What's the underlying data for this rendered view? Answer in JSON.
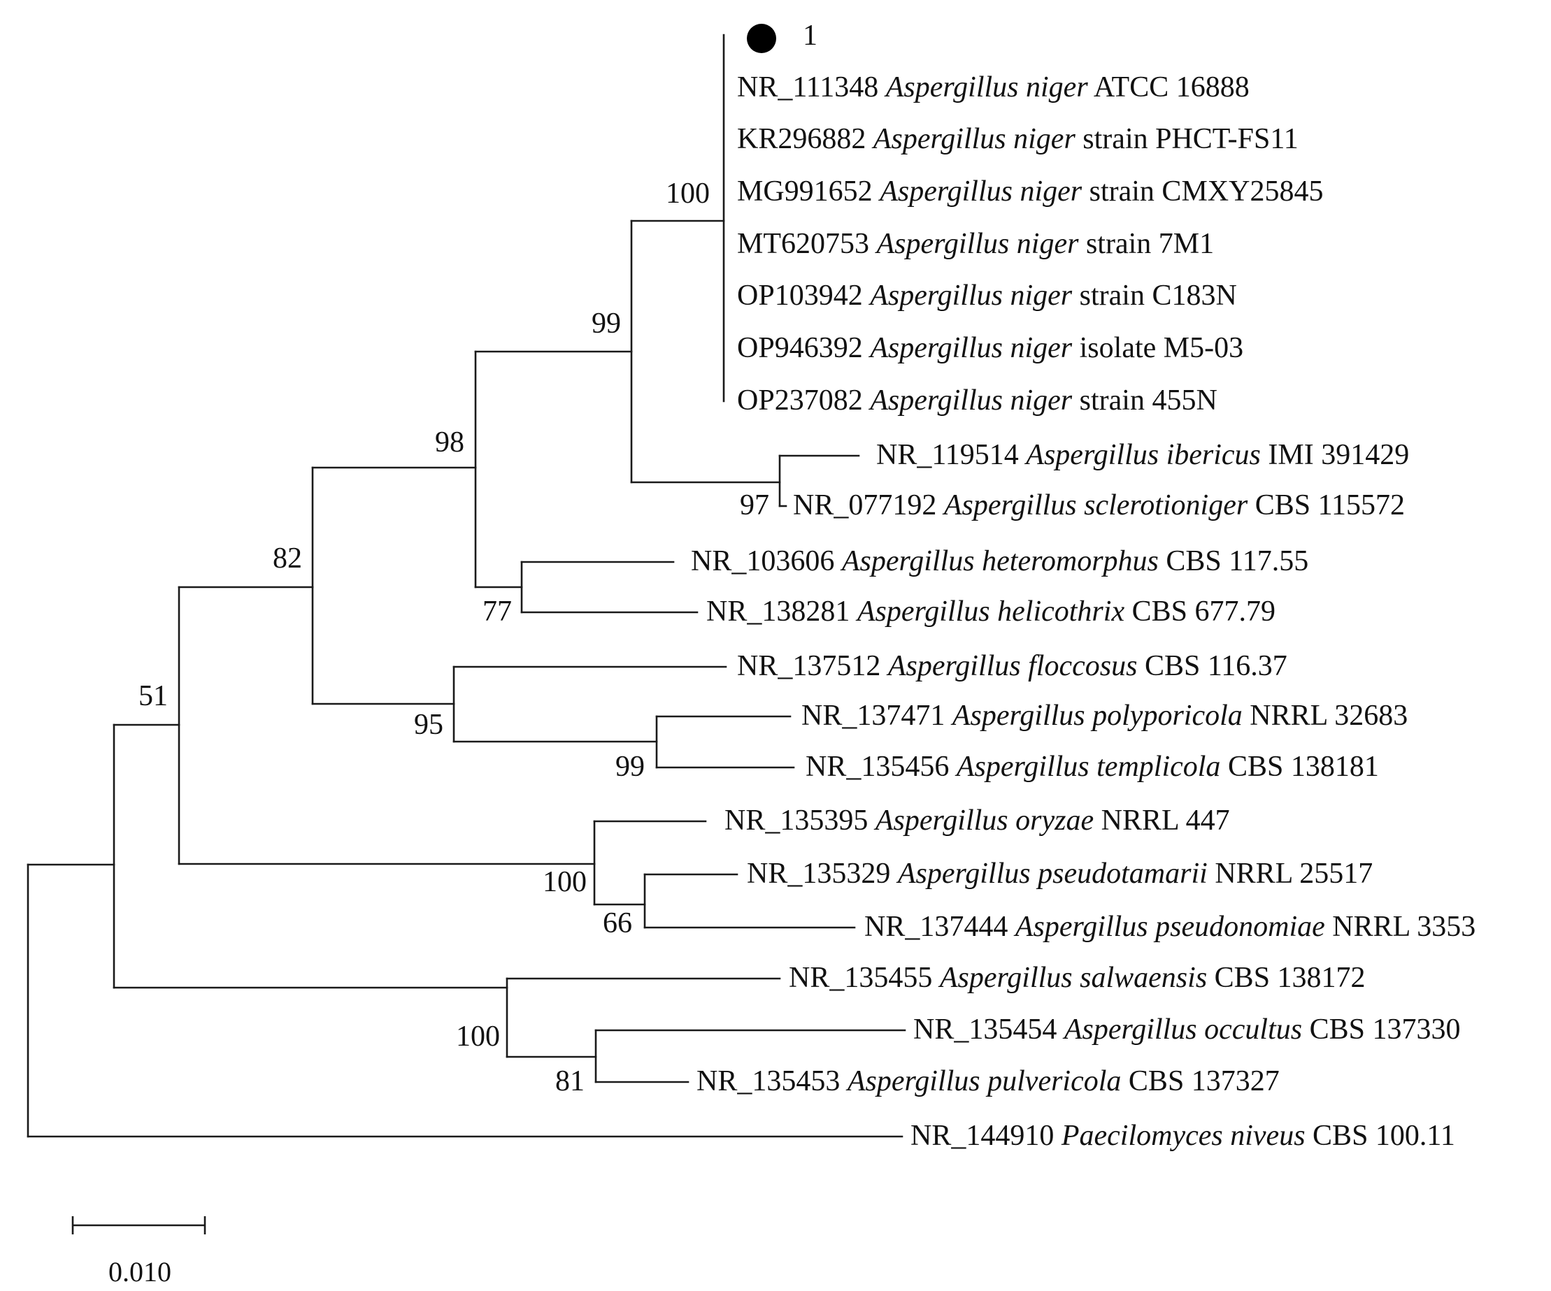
{
  "marker_label": "1",
  "colors": {
    "line": "#1a1a1a",
    "text": "#111111",
    "marker": "#000000"
  },
  "taxa": [
    {
      "id": "NR_111348",
      "species": "Aspergillus niger",
      "suffix": "ATCC 16888"
    },
    {
      "id": "KR296882",
      "species": "Aspergillus niger",
      "suffix": "strain PHCT-FS11"
    },
    {
      "id": "MG991652",
      "species": "Aspergillus niger",
      "suffix": "strain CMXY25845"
    },
    {
      "id": "MT620753",
      "species": "Aspergillus niger",
      "suffix": "strain 7M1"
    },
    {
      "id": "OP103942",
      "species": "Aspergillus niger",
      "suffix": "strain C183N"
    },
    {
      "id": "OP946392",
      "species": "Aspergillus niger",
      "suffix": "isolate M5-03"
    },
    {
      "id": "OP237082",
      "species": "Aspergillus niger",
      "suffix": "strain 455N"
    },
    {
      "id": "NR_119514",
      "species": "Aspergillus ibericus",
      "suffix": "IMI 391429"
    },
    {
      "id": "NR_077192",
      "species": "Aspergillus sclerotioniger",
      "suffix": "CBS 115572"
    },
    {
      "id": "NR_103606",
      "species": "Aspergillus heteromorphus",
      "suffix": "CBS 117.55"
    },
    {
      "id": "NR_138281",
      "species": "Aspergillus helicothrix",
      "suffix": "CBS 677.79"
    },
    {
      "id": "NR_137512",
      "species": "Aspergillus floccosus",
      "suffix": "CBS 116.37"
    },
    {
      "id": "NR_137471",
      "species": "Aspergillus polyporicola",
      "suffix": "NRRL 32683"
    },
    {
      "id": "NR_135456",
      "species": "Aspergillus templicola",
      "suffix": "CBS 138181"
    },
    {
      "id": "NR_135395",
      "species": "Aspergillus oryzae",
      "suffix": "NRRL 447"
    },
    {
      "id": "NR_135329",
      "species": "Aspergillus pseudotamarii",
      "suffix": "NRRL 25517"
    },
    {
      "id": "NR_137444",
      "species": "Aspergillus pseudonomiae",
      "suffix": "NRRL 3353"
    },
    {
      "id": "NR_135455",
      "species": "Aspergillus salwaensis",
      "suffix": "CBS 138172"
    },
    {
      "id": "NR_135454",
      "species": "Aspergillus occultus",
      "suffix": "CBS 137330"
    },
    {
      "id": "NR_135453",
      "species": "Aspergillus pulvericola",
      "suffix": "CBS 137327"
    },
    {
      "id": "NR_144910",
      "species": "Paecilomyces niveus",
      "suffix": "CBS 100.11"
    }
  ],
  "bootstrap": {
    "niger_clade": "100",
    "niger_ibericus": "99",
    "clade_98": "98",
    "ibericus_sclerotioniger": "97",
    "heteromorphus_helicothrix": "77",
    "clade_82": "82",
    "floccosus_group": "95",
    "polyporicola_templicola": "99",
    "clade_51": "51",
    "oryzae_group": "100",
    "pseudotamarii_pseudonomiae": "66",
    "salwaensis_group": "100",
    "occultus_pulvericola": "81"
  },
  "scale_bar": {
    "label": "0.010"
  }
}
